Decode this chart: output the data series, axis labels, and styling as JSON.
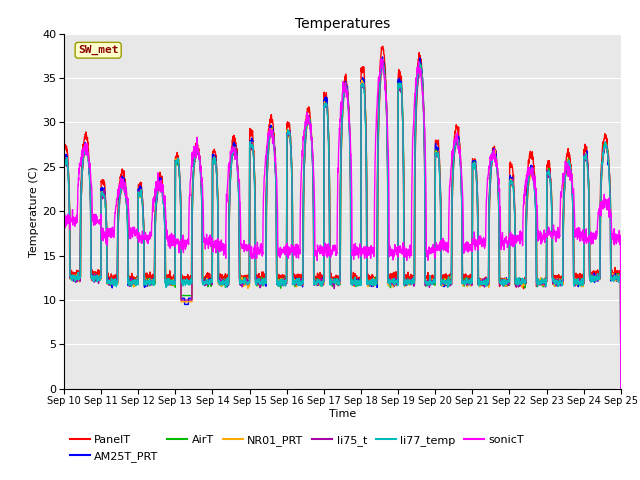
{
  "title": "Temperatures",
  "xlabel": "Time",
  "ylabel": "Temperature (C)",
  "ylim": [
    0,
    40
  ],
  "yticks": [
    0,
    5,
    10,
    15,
    20,
    25,
    30,
    35,
    40
  ],
  "x_labels": [
    "Sep 10",
    "Sep 11",
    "Sep 12",
    "Sep 13",
    "Sep 14",
    "Sep 15",
    "Sep 16",
    "Sep 17",
    "Sep 18",
    "Sep 19",
    "Sep 20",
    "Sep 21",
    "Sep 22",
    "Sep 23",
    "Sep 24",
    "Sep 25"
  ],
  "series_order": [
    "PanelT",
    "AM25T_PRT",
    "AirT",
    "NR01_PRT",
    "li75_t",
    "li77_temp",
    "sonicT"
  ],
  "series": {
    "PanelT": {
      "color": "#ff0000",
      "lw": 1.0
    },
    "AM25T_PRT": {
      "color": "#0000ff",
      "lw": 1.0
    },
    "AirT": {
      "color": "#00bb00",
      "lw": 1.0
    },
    "NR01_PRT": {
      "color": "#ffaa00",
      "lw": 1.0
    },
    "li75_t": {
      "color": "#aa00aa",
      "lw": 1.0
    },
    "li77_temp": {
      "color": "#00bbbb",
      "lw": 1.0
    },
    "sonicT": {
      "color": "#ff00ff",
      "lw": 1.0
    }
  },
  "annotation_text": "SW_met",
  "annotation_color": "#8b0000",
  "annotation_bg": "#ffffcc",
  "annotation_border": "#999900",
  "bg_color": "#e8e8e8",
  "grid_color": "#ffffff",
  "num_days": 15,
  "points_per_day": 144,
  "panel_peaks": [
    28.5,
    24.5,
    24.0,
    27.5,
    28.2,
    30.5,
    31.5,
    35.0,
    38.5,
    37.5,
    29.5,
    27.0,
    26.5,
    26.5,
    28.5
  ],
  "am25_peaks": [
    27.5,
    23.5,
    23.5,
    27.0,
    27.5,
    29.5,
    30.5,
    34.5,
    37.0,
    37.0,
    28.5,
    27.0,
    25.0,
    25.5,
    27.5
  ],
  "air_peaks": [
    27.0,
    23.0,
    23.0,
    27.0,
    27.0,
    29.0,
    30.5,
    34.0,
    36.5,
    36.5,
    28.0,
    26.5,
    24.5,
    25.5,
    27.5
  ],
  "nr01_peaks": [
    27.0,
    23.0,
    23.0,
    27.0,
    27.0,
    29.0,
    30.5,
    34.0,
    36.5,
    36.0,
    28.0,
    26.5,
    24.5,
    25.5,
    27.5
  ],
  "li75_peaks": [
    27.0,
    23.0,
    23.0,
    27.0,
    27.0,
    29.0,
    30.5,
    34.0,
    36.5,
    36.0,
    28.0,
    26.5,
    24.5,
    25.5,
    27.5
  ],
  "li77_peaks": [
    27.0,
    23.0,
    23.0,
    27.0,
    27.0,
    29.0,
    30.5,
    34.0,
    36.5,
    36.5,
    28.0,
    26.5,
    24.5,
    25.5,
    27.5
  ],
  "sonic_peaks": [
    27.0,
    23.0,
    23.0,
    27.0,
    27.0,
    29.0,
    30.5,
    34.0,
    36.5,
    36.0,
    28.0,
    26.5,
    24.5,
    25.0,
    21.0
  ],
  "panel_nights": [
    13.0,
    12.5,
    12.5,
    12.5,
    12.5,
    12.5,
    12.5,
    12.5,
    12.5,
    12.5,
    12.5,
    12.0,
    12.0,
    12.5,
    13.0
  ],
  "core_nights": [
    12.5,
    12.0,
    12.0,
    12.0,
    12.0,
    12.0,
    12.0,
    12.0,
    12.0,
    12.0,
    12.0,
    12.0,
    12.0,
    12.0,
    12.5
  ],
  "sonic_nights": [
    19.0,
    17.5,
    17.0,
    16.5,
    16.0,
    15.5,
    15.5,
    15.5,
    15.5,
    15.5,
    16.0,
    16.5,
    17.0,
    17.5,
    17.0
  ]
}
